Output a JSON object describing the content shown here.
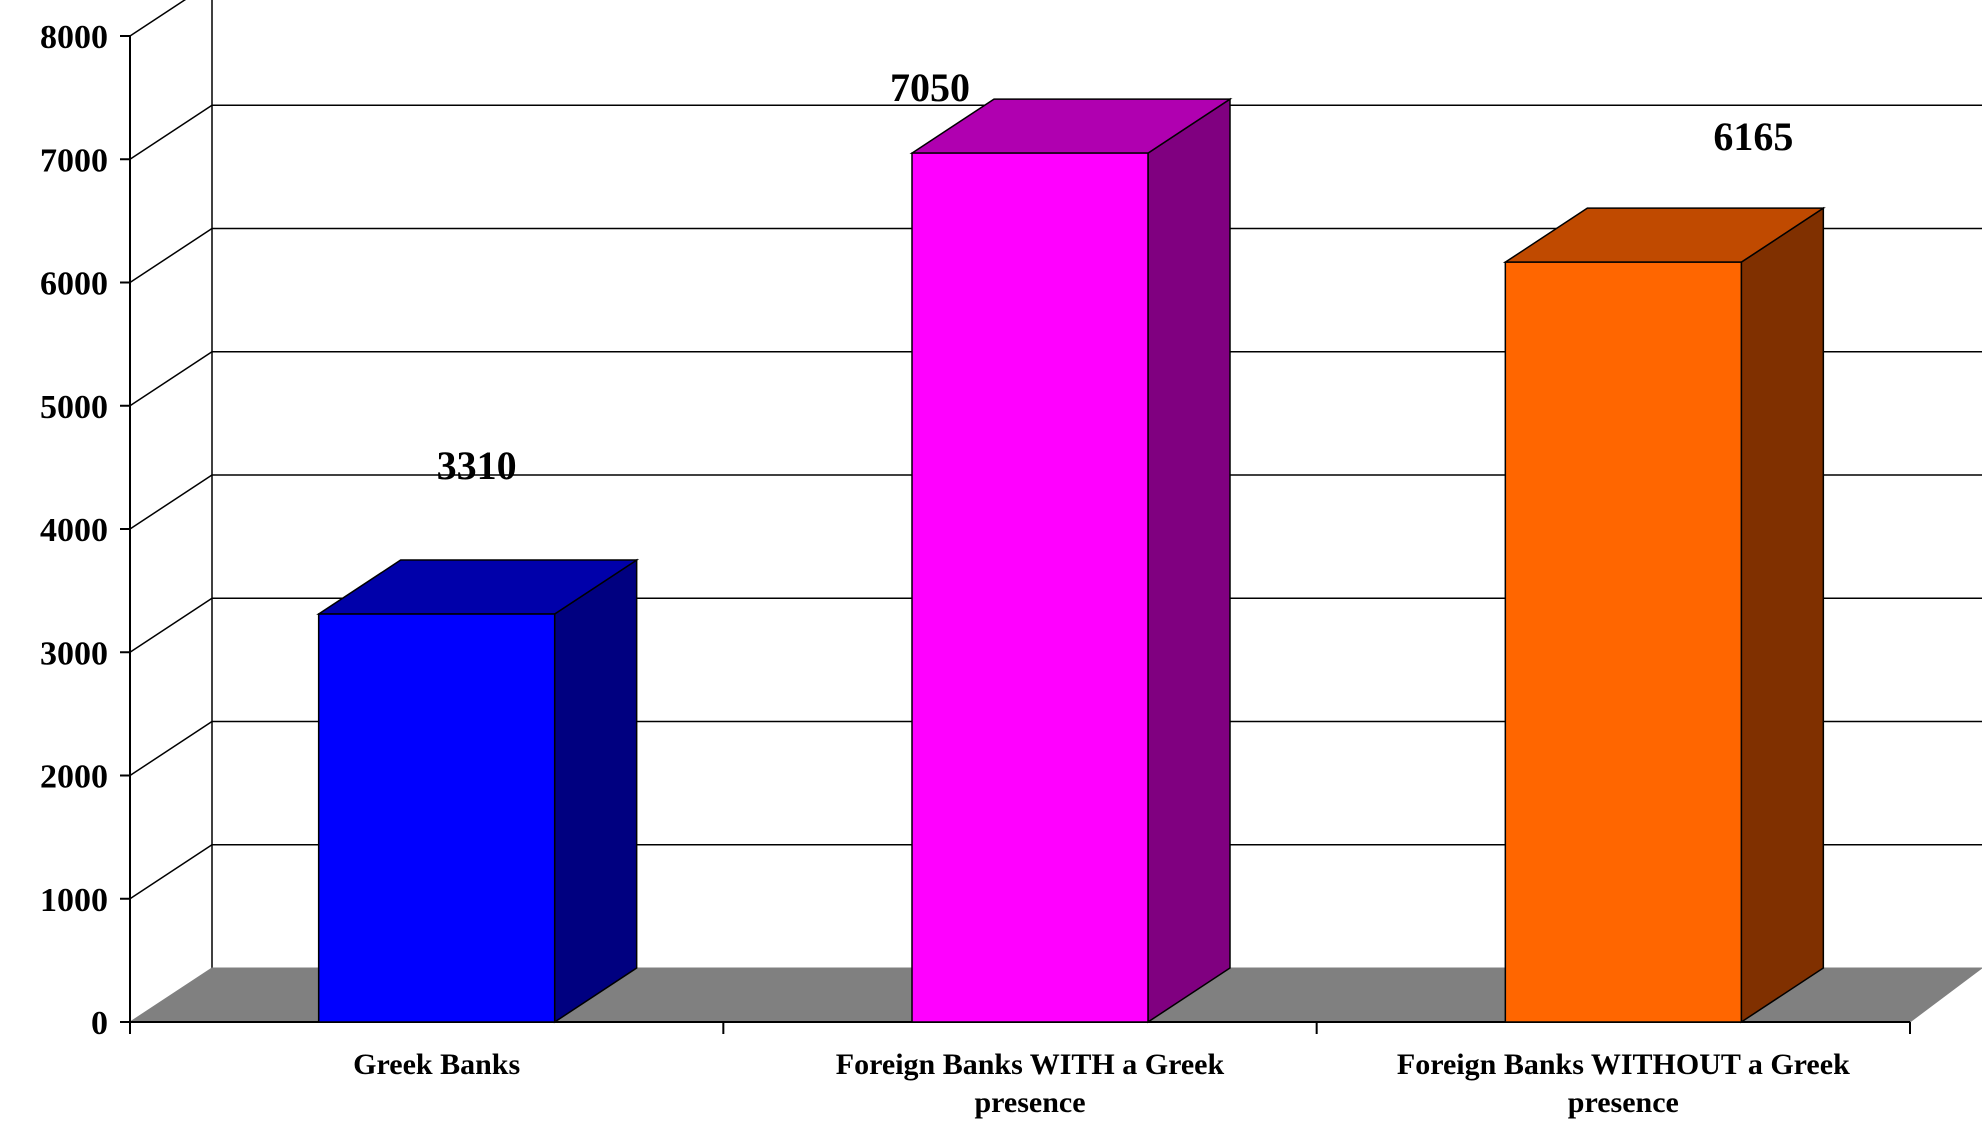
{
  "chart_data": {
    "type": "bar",
    "style": "3d",
    "categories": [
      [
        "Greek Banks"
      ],
      [
        "Foreign Banks WITH a Greek",
        "presence"
      ],
      [
        "Foreign Banks WITHOUT a Greek",
        "presence"
      ]
    ],
    "values": [
      3310,
      7050,
      6165
    ],
    "data_labels": [
      "3310",
      "7050",
      "6165"
    ],
    "ylim": [
      0,
      8000
    ],
    "yticks": [
      0,
      1000,
      2000,
      3000,
      4000,
      5000,
      6000,
      7000,
      8000
    ],
    "ytick_labels": [
      "0",
      "1000",
      "2000",
      "3000",
      "4000",
      "5000",
      "6000",
      "7000",
      "8000"
    ],
    "grid": true,
    "legend": "none",
    "title": "",
    "xlabel": "",
    "ylabel": "",
    "colors": {
      "bar_front": [
        "#0000ff",
        "#ff00ff",
        "#ff6600"
      ],
      "bar_top": [
        "#0000aa",
        "#b000b0",
        "#c04a00"
      ],
      "bar_side": [
        "#000080",
        "#800080",
        "#803000"
      ],
      "floor": "#808080",
      "grid": "#000000"
    }
  }
}
